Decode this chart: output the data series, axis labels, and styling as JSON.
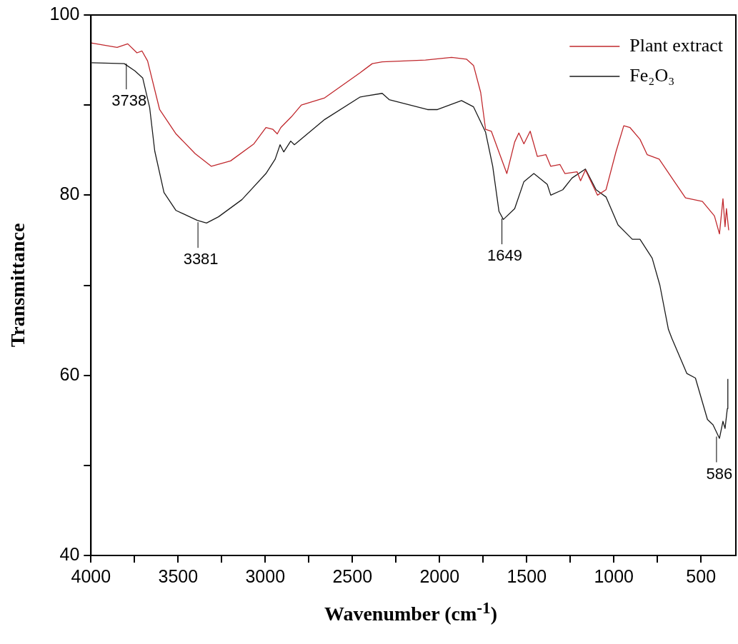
{
  "chart_data": {
    "type": "line",
    "xlabel": "Wavenumber (cm$^{-1}$)",
    "ylabel": "Transmittance",
    "xlim": [
      4000,
      300
    ],
    "ylim": [
      40,
      100
    ],
    "xticks": [
      4000,
      {
        "value": 3750,
        "label": null
      },
      3500,
      {
        "value": 3250,
        "label": null
      },
      3000,
      {
        "value": 2750,
        "label": null
      },
      2500,
      {
        "value": 2250,
        "label": null
      },
      2000,
      {
        "value": 1750,
        "label": null
      },
      1500,
      {
        "value": 1250,
        "label": null
      },
      1000,
      {
        "value": 750,
        "label": null
      },
      500
    ],
    "yticks": [
      40,
      {
        "value": 50,
        "label": null
      },
      60,
      {
        "value": 70,
        "label": null
      },
      80,
      {
        "value": 90,
        "label": null
      },
      100
    ],
    "grid": false,
    "legend": "top right",
    "marker": "none",
    "line_style": "solid",
    "series": [
      {
        "name": "Plant extract",
        "color": "#c0282d",
        "x": [
          4000,
          3850,
          3789,
          3736,
          3707,
          3675,
          3606,
          3512,
          3402,
          3309,
          3199,
          3065,
          2996,
          2956,
          2931,
          2911,
          2850,
          2793,
          2659,
          2455,
          2386,
          2329,
          2081,
          1931,
          1846,
          1805,
          1764,
          1736,
          1703,
          1654,
          1614,
          1569,
          1545,
          1516,
          1480,
          1439,
          1390,
          1362,
          1309,
          1281,
          1211,
          1191,
          1163,
          1094,
          1045,
          988,
          943,
          907,
          850,
          809,
          740,
          642,
          589,
          492,
          423,
          394,
          374,
          362,
          354,
          341
        ],
        "values": [
          96.9,
          96.4,
          96.8,
          95.8,
          96.0,
          94.9,
          89.5,
          86.8,
          84.6,
          83.2,
          83.8,
          85.7,
          87.5,
          87.3,
          86.8,
          87.5,
          88.7,
          90.0,
          90.8,
          93.6,
          94.6,
          94.8,
          95.0,
          95.3,
          95.1,
          94.4,
          91.4,
          87.3,
          87.1,
          84.5,
          82.4,
          85.9,
          86.9,
          85.7,
          87.1,
          84.3,
          84.5,
          83.2,
          83.4,
          82.4,
          82.6,
          81.6,
          82.8,
          80.0,
          80.6,
          84.8,
          87.7,
          87.5,
          86.2,
          84.5,
          84.0,
          81.2,
          79.7,
          79.3,
          77.7,
          75.7,
          79.6,
          76.5,
          78.5,
          76.1
        ]
      },
      {
        "name": "Fe₂O₃",
        "color": "#1a1a1a",
        "x": [
          3996,
          3809,
          3748,
          3703,
          3663,
          3634,
          3581,
          3512,
          3390,
          3337,
          3268,
          3134,
          2996,
          2943,
          2915,
          2894,
          2854,
          2833,
          2659,
          2455,
          2329,
          2289,
          2069,
          2012,
          1874,
          1805,
          1736,
          1695,
          1659,
          1634,
          1569,
          1516,
          1459,
          1382,
          1362,
          1293,
          1240,
          1163,
          1102,
          1045,
          976,
          894,
          850,
          780,
          736,
          687,
          667,
          581,
          532,
          463,
          431,
          394,
          374,
          362,
          349,
          346
        ],
        "values": [
          94.7,
          94.6,
          93.8,
          93.0,
          89.7,
          84.9,
          80.3,
          78.3,
          77.2,
          76.9,
          77.6,
          79.5,
          82.4,
          84.0,
          85.6,
          84.8,
          86.0,
          85.6,
          88.4,
          90.9,
          91.3,
          90.6,
          89.5,
          89.5,
          90.5,
          89.8,
          87.0,
          83.2,
          78.2,
          77.3,
          78.5,
          81.5,
          82.4,
          81.2,
          80.0,
          80.6,
          81.9,
          82.9,
          80.6,
          79.8,
          76.7,
          75.1,
          75.1,
          73.0,
          70.0,
          65.1,
          64.1,
          60.2,
          59.7,
          55.1,
          54.5,
          53.0,
          54.9,
          54.1,
          56.3,
          59.6
        ]
      }
    ],
    "annotations": [
      {
        "text": "3738",
        "x": 3797,
        "y": 94.6
      },
      {
        "text": "3381",
        "x": 3386,
        "y": 77.0
      },
      {
        "text": "1649",
        "x": 1642,
        "y": 77.4
      },
      {
        "text": "586",
        "x": 411,
        "y": 53.2
      }
    ]
  }
}
